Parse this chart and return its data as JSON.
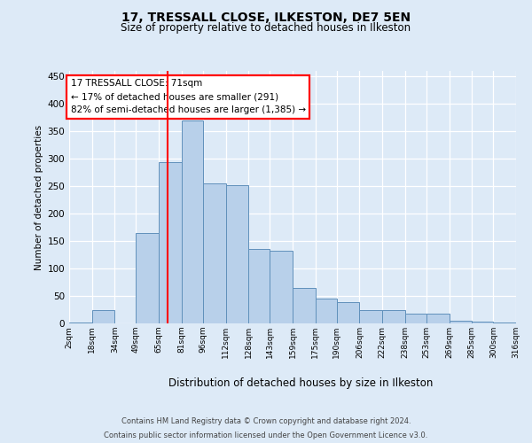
{
  "title1": "17, TRESSALL CLOSE, ILKESTON, DE7 5EN",
  "title2": "Size of property relative to detached houses in Ilkeston",
  "xlabel": "Distribution of detached houses by size in Ilkeston",
  "ylabel": "Number of detached properties",
  "annotation_line1": "17 TRESSALL CLOSE: 71sqm",
  "annotation_line2": "← 17% of detached houses are smaller (291)",
  "annotation_line3": "82% of semi-detached houses are larger (1,385) →",
  "footer1": "Contains HM Land Registry data © Crown copyright and database right 2024.",
  "footer2": "Contains public sector information licensed under the Open Government Licence v3.0.",
  "bar_color": "#b8d0ea",
  "bar_edge_color": "#6090bb",
  "red_line_x": 71,
  "bins": [
    2,
    18,
    34,
    49,
    65,
    81,
    96,
    112,
    128,
    143,
    159,
    175,
    190,
    206,
    222,
    238,
    253,
    269,
    285,
    300,
    316
  ],
  "bin_labels": [
    "2sqm",
    "18sqm",
    "34sqm",
    "49sqm",
    "65sqm",
    "81sqm",
    "96sqm",
    "112sqm",
    "128sqm",
    "143sqm",
    "159sqm",
    "175sqm",
    "190sqm",
    "206sqm",
    "222sqm",
    "238sqm",
    "253sqm",
    "269sqm",
    "285sqm",
    "300sqm",
    "316sqm"
  ],
  "bar_heights": [
    2,
    25,
    0,
    165,
    293,
    370,
    255,
    252,
    135,
    132,
    65,
    45,
    38,
    25,
    25,
    18,
    17,
    5,
    4,
    2,
    0
  ],
  "ylim": [
    0,
    460
  ],
  "yticks": [
    0,
    50,
    100,
    150,
    200,
    250,
    300,
    350,
    400,
    450
  ],
  "fig_bg_color": "#ddeaf7",
  "plot_bg_color": "#ddeaf7",
  "grid_color": "#ffffff",
  "title1_fontsize": 10,
  "title2_fontsize": 8.5,
  "ylabel_fontsize": 7.5,
  "xlabel_fontsize": 8.5,
  "ytick_fontsize": 7.5,
  "xtick_fontsize": 6.5,
  "ann_fontsize": 7.5,
  "footer_fontsize": 6.0
}
